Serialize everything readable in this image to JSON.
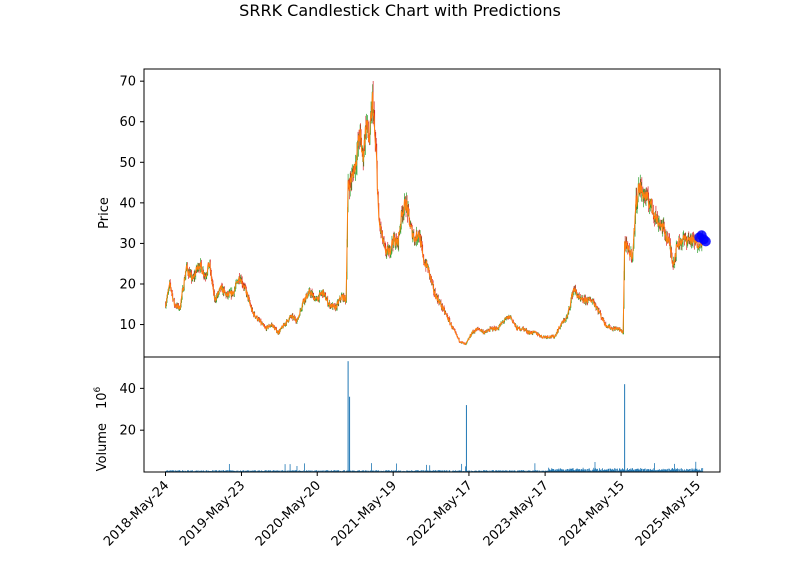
{
  "chart_data": {
    "type": "candlestick",
    "title": "SRRK Candlestick Chart with Predictions",
    "ylabel": "Price",
    "volume_label": "Volume",
    "volume_multiplier": "10^6",
    "x_tick_labels": [
      "2018-May-24",
      "2019-May-23",
      "2020-May-20",
      "2021-May-19",
      "2022-May-17",
      "2023-May-17",
      "2024-May-15",
      "2025-May-15"
    ],
    "price_ticks": [
      10,
      20,
      30,
      40,
      50,
      60,
      70
    ],
    "volume_ticks": [
      20,
      40
    ],
    "xlim": [
      "2018-Feb-10",
      "2025-Sep-01"
    ],
    "price_ylim": [
      2,
      73
    ],
    "volume_ylim": [
      0,
      55
    ],
    "colors": {
      "up": "#2ca02c",
      "down": "#d62728",
      "close_line": "#ff7f0e",
      "volume": "#1f77b4",
      "prediction": "#0000ff"
    },
    "price_series": [
      {
        "date": "2018-May-24",
        "close": 15
      },
      {
        "date": "2018-Jun-15",
        "close": 20
      },
      {
        "date": "2018-Jul-05",
        "close": 15
      },
      {
        "date": "2018-Aug-01",
        "close": 14
      },
      {
        "date": "2018-Sep-01",
        "close": 24
      },
      {
        "date": "2018-Oct-01",
        "close": 21
      },
      {
        "date": "2018-Nov-01",
        "close": 25
      },
      {
        "date": "2018-Dec-01",
        "close": 22
      },
      {
        "date": "2018-Dec-20",
        "close": 25
      },
      {
        "date": "2019-Jan-15",
        "close": 16
      },
      {
        "date": "2019-Feb-15",
        "close": 19
      },
      {
        "date": "2019-Mar-15",
        "close": 17
      },
      {
        "date": "2019-Apr-15",
        "close": 18
      },
      {
        "date": "2019-May-15",
        "close": 22
      },
      {
        "date": "2019-Jun-15",
        "close": 18
      },
      {
        "date": "2019-Jul-15",
        "close": 13
      },
      {
        "date": "2019-Aug-15",
        "close": 11
      },
      {
        "date": "2019-Sep-15",
        "close": 9
      },
      {
        "date": "2019-Oct-15",
        "close": 10
      },
      {
        "date": "2019-Nov-15",
        "close": 8
      },
      {
        "date": "2019-Dec-15",
        "close": 10
      },
      {
        "date": "2020-Jan-15",
        "close": 12
      },
      {
        "date": "2020-Feb-15",
        "close": 11
      },
      {
        "date": "2020-Mar-15",
        "close": 16
      },
      {
        "date": "2020-Apr-15",
        "close": 18
      },
      {
        "date": "2020-May-15",
        "close": 16
      },
      {
        "date": "2020-Jun-15",
        "close": 18
      },
      {
        "date": "2020-Jul-15",
        "close": 15
      },
      {
        "date": "2020-Aug-15",
        "close": 14
      },
      {
        "date": "2020-Sep-15",
        "close": 17
      },
      {
        "date": "2020-Oct-05",
        "close": 16
      },
      {
        "date": "2020-Oct-15",
        "close": 44
      },
      {
        "date": "2020-Nov-01",
        "close": 46
      },
      {
        "date": "2020-Nov-20",
        "close": 50
      },
      {
        "date": "2020-Dec-10",
        "close": 57
      },
      {
        "date": "2020-Dec-25",
        "close": 51
      },
      {
        "date": "2021-Jan-10",
        "close": 60
      },
      {
        "date": "2021-Jan-25",
        "close": 55
      },
      {
        "date": "2021-Feb-10",
        "close": 66
      },
      {
        "date": "2021-Feb-20",
        "close": 56
      },
      {
        "date": "2021-Mar-01",
        "close": 50
      },
      {
        "date": "2021-Mar-10",
        "close": 36
      },
      {
        "date": "2021-Mar-25",
        "close": 32
      },
      {
        "date": "2021-Apr-10",
        "close": 28
      },
      {
        "date": "2021-May-01",
        "close": 28
      },
      {
        "date": "2021-May-19",
        "close": 31
      },
      {
        "date": "2021-Jun-10",
        "close": 30
      },
      {
        "date": "2021-Jul-01",
        "close": 38
      },
      {
        "date": "2021-Jul-20",
        "close": 40
      },
      {
        "date": "2021-Aug-10",
        "close": 34
      },
      {
        "date": "2021-Sep-01",
        "close": 31
      },
      {
        "date": "2021-Sep-20",
        "close": 33
      },
      {
        "date": "2021-Oct-10",
        "close": 26
      },
      {
        "date": "2021-Nov-01",
        "close": 24
      },
      {
        "date": "2021-Dec-01",
        "close": 18
      },
      {
        "date": "2022-Jan-01",
        "close": 15
      },
      {
        "date": "2022-Feb-01",
        "close": 12
      },
      {
        "date": "2022-Mar-01",
        "close": 9
      },
      {
        "date": "2022-Apr-01",
        "close": 6
      },
      {
        "date": "2022-May-01",
        "close": 5
      },
      {
        "date": "2022-Jun-01",
        "close": 8
      },
      {
        "date": "2022-Jul-01",
        "close": 9
      },
      {
        "date": "2022-Aug-01",
        "close": 8
      },
      {
        "date": "2022-Sep-01",
        "close": 9
      },
      {
        "date": "2022-Oct-01",
        "close": 9
      },
      {
        "date": "2022-Nov-01",
        "close": 11
      },
      {
        "date": "2022-Dec-01",
        "close": 12
      },
      {
        "date": "2023-Jan-01",
        "close": 9
      },
      {
        "date": "2023-Feb-01",
        "close": 9
      },
      {
        "date": "2023-Mar-01",
        "close": 8
      },
      {
        "date": "2023-Apr-01",
        "close": 8
      },
      {
        "date": "2023-May-01",
        "close": 7
      },
      {
        "date": "2023-Jun-01",
        "close": 7
      },
      {
        "date": "2023-Jul-01",
        "close": 7
      },
      {
        "date": "2023-Aug-01",
        "close": 10
      },
      {
        "date": "2023-Sep-01",
        "close": 12
      },
      {
        "date": "2023-Oct-01",
        "close": 19
      },
      {
        "date": "2023-Nov-01",
        "close": 16
      },
      {
        "date": "2023-Dec-01",
        "close": 16
      },
      {
        "date": "2024-Jan-01",
        "close": 16
      },
      {
        "date": "2024-Feb-01",
        "close": 13
      },
      {
        "date": "2024-Mar-01",
        "close": 10
      },
      {
        "date": "2024-Apr-01",
        "close": 9
      },
      {
        "date": "2024-May-01",
        "close": 9
      },
      {
        "date": "2024-May-25",
        "close": 8
      },
      {
        "date": "2024-Jun-01",
        "close": 30
      },
      {
        "date": "2024-Jun-20",
        "close": 28
      },
      {
        "date": "2024-Jul-10",
        "close": 27
      },
      {
        "date": "2024-Jul-25",
        "close": 40
      },
      {
        "date": "2024-Aug-10",
        "close": 44
      },
      {
        "date": "2024-Sep-01",
        "close": 42
      },
      {
        "date": "2024-Oct-01",
        "close": 40
      },
      {
        "date": "2024-Nov-01",
        "close": 36
      },
      {
        "date": "2024-Dec-01",
        "close": 34
      },
      {
        "date": "2025-Jan-01",
        "close": 30
      },
      {
        "date": "2025-Jan-20",
        "close": 25
      },
      {
        "date": "2025-Feb-10",
        "close": 30
      },
      {
        "date": "2025-Mar-10",
        "close": 31
      },
      {
        "date": "2025-Apr-10",
        "close": 31
      },
      {
        "date": "2025-May-15",
        "close": 30
      },
      {
        "date": "2025-Jun-10",
        "close": 31
      }
    ],
    "volume_spikes": [
      {
        "date": "2020-Oct-15",
        "value": 53
      },
      {
        "date": "2020-Oct-22",
        "value": 36
      },
      {
        "date": "2022-May-05",
        "value": 32
      },
      {
        "date": "2024-Jun-01",
        "value": 42
      }
    ],
    "predictions": [
      {
        "date": "2025-May-25",
        "value": 31.5
      },
      {
        "date": "2025-Jun-05",
        "value": 32
      },
      {
        "date": "2025-Jun-15",
        "value": 31
      },
      {
        "date": "2025-Jun-25",
        "value": 30.5
      }
    ]
  }
}
